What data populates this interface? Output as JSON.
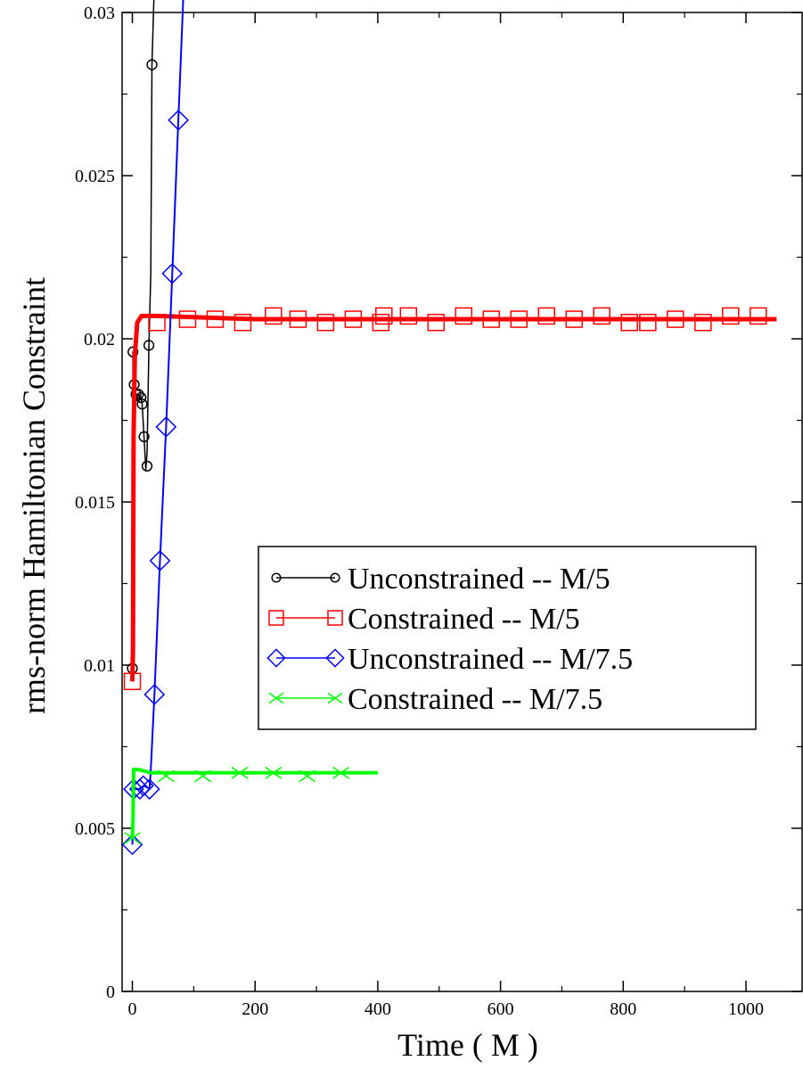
{
  "chart_data": {
    "type": "line",
    "title": "",
    "xlabel": "Time ( M )",
    "ylabel": "rms-norm Hamiltonian Constraint",
    "xlim": [
      -15,
      1080
    ],
    "ylim": [
      0,
      0.03
    ],
    "x_ticks": [
      0,
      200,
      400,
      600,
      800,
      1000
    ],
    "x_tick_labels": [
      "0",
      "200",
      "400",
      "600",
      "800",
      "1000"
    ],
    "y_ticks": [
      0,
      0.005,
      0.01,
      0.015,
      0.02,
      0.025,
      0.03
    ],
    "y_tick_labels": [
      "0",
      "0.005",
      "0.01",
      "0.015",
      "0.02",
      "0.025",
      "0.03"
    ],
    "grid": false,
    "legend_position": "center-right",
    "series": [
      {
        "name": "Unconstrained -- M/5",
        "color": "#000000",
        "marker": "circle",
        "line": [
          [
            0,
            0.0099
          ],
          [
            1,
            0.0196
          ],
          [
            3,
            0.0186
          ],
          [
            6,
            0.0183
          ],
          [
            8,
            0.0181
          ],
          [
            10,
            0.0183
          ],
          [
            14,
            0.0182
          ],
          [
            16,
            0.018
          ],
          [
            19,
            0.017
          ],
          [
            22,
            0.016
          ],
          [
            24,
            0.0165
          ],
          [
            27,
            0.0198
          ],
          [
            30,
            0.022
          ],
          [
            32,
            0.0284
          ],
          [
            36,
            0.031
          ]
        ],
        "markers": [
          [
            0,
            0.0099
          ],
          [
            1,
            0.0196
          ],
          [
            3,
            0.0186
          ],
          [
            6,
            0.0183
          ],
          [
            10,
            0.0183
          ],
          [
            14,
            0.0182
          ],
          [
            16,
            0.018
          ],
          [
            19,
            0.017
          ],
          [
            24,
            0.0161
          ],
          [
            27,
            0.0198
          ],
          [
            32,
            0.0284
          ]
        ]
      },
      {
        "name": "Constrained -- M/5",
        "color": "#ff0000",
        "marker": "square",
        "line": [
          [
            0,
            0.0095
          ],
          [
            1,
            0.0105
          ],
          [
            2,
            0.017
          ],
          [
            4,
            0.0195
          ],
          [
            8,
            0.0205
          ],
          [
            15,
            0.0207
          ],
          [
            40,
            0.0207
          ],
          [
            200,
            0.0206
          ],
          [
            400,
            0.0206
          ],
          [
            600,
            0.0206
          ],
          [
            800,
            0.0206
          ],
          [
            1050,
            0.0206
          ]
        ],
        "markers": [
          [
            0,
            0.0095
          ],
          [
            40,
            0.0205
          ],
          [
            90,
            0.0206
          ],
          [
            135,
            0.0206
          ],
          [
            180,
            0.0205
          ],
          [
            230,
            0.0207
          ],
          [
            270,
            0.0206
          ],
          [
            315,
            0.0205
          ],
          [
            360,
            0.0206
          ],
          [
            405,
            0.0205
          ],
          [
            410,
            0.0207
          ],
          [
            450,
            0.0207
          ],
          [
            495,
            0.0205
          ],
          [
            540,
            0.0207
          ],
          [
            585,
            0.0206
          ],
          [
            630,
            0.0206
          ],
          [
            675,
            0.0207
          ],
          [
            720,
            0.0206
          ],
          [
            765,
            0.0207
          ],
          [
            810,
            0.0205
          ],
          [
            840,
            0.0205
          ],
          [
            885,
            0.0206
          ],
          [
            930,
            0.0205
          ],
          [
            975,
            0.0207
          ],
          [
            1020,
            0.0207
          ]
        ]
      },
      {
        "name": "Unconstrained -- M/7.5",
        "color": "#0000ff",
        "marker": "diamond",
        "line": [
          [
            0,
            0.0045
          ],
          [
            2,
            0.0062
          ],
          [
            10,
            0.0062
          ],
          [
            20,
            0.0063
          ],
          [
            28,
            0.0062
          ],
          [
            30,
            0.0068
          ],
          [
            36,
            0.0091
          ],
          [
            45,
            0.0132
          ],
          [
            55,
            0.0173
          ],
          [
            65,
            0.022
          ],
          [
            75,
            0.0267
          ],
          [
            82,
            0.03
          ],
          [
            90,
            0.034
          ]
        ],
        "markers": [
          [
            0,
            0.0045
          ],
          [
            2,
            0.0062
          ],
          [
            12,
            0.0062
          ],
          [
            18,
            0.0063
          ],
          [
            28,
            0.0062
          ],
          [
            36,
            0.0091
          ],
          [
            45,
            0.0132
          ],
          [
            55,
            0.0173
          ],
          [
            65,
            0.022
          ],
          [
            75,
            0.0267
          ]
        ]
      },
      {
        "name": "Constrained -- M/7.5",
        "color": "#00ff00",
        "marker": "x",
        "line": [
          [
            0,
            0.0047
          ],
          [
            1,
            0.0052
          ],
          [
            2,
            0.0068
          ],
          [
            10,
            0.0068
          ],
          [
            30,
            0.0067
          ],
          [
            400,
            0.0067
          ]
        ],
        "markers": [
          [
            0,
            0.0047
          ],
          [
            55,
            0.0066
          ],
          [
            115,
            0.0066
          ],
          [
            175,
            0.0067
          ],
          [
            230,
            0.0067
          ],
          [
            285,
            0.0066
          ],
          [
            340,
            0.0067
          ]
        ]
      }
    ]
  }
}
